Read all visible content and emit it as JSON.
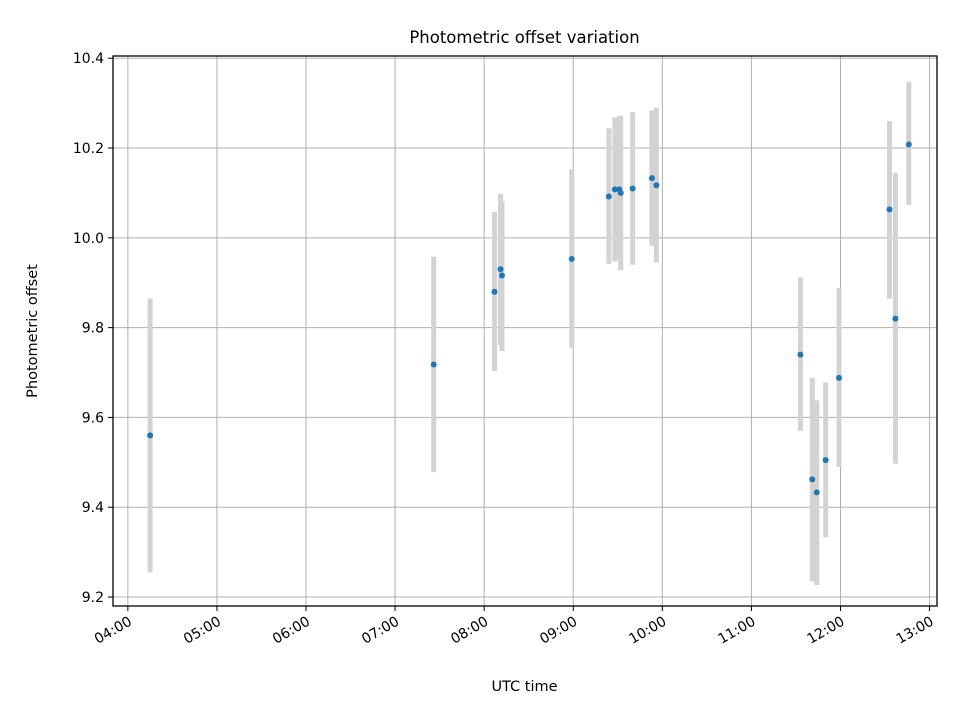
{
  "chart_data": {
    "type": "scatter",
    "title": "Photometric offset variation",
    "xlabel": "UTC time",
    "ylabel": "Photometric offset",
    "x_tick_labels": [
      "04:00",
      "05:00",
      "06:00",
      "07:00",
      "08:00",
      "09:00",
      "10:00",
      "11:00",
      "12:00",
      "13:00"
    ],
    "y_tick_labels": [
      "9.2",
      "9.4",
      "9.6",
      "9.8",
      "10.0",
      "10.2",
      "10.4"
    ],
    "xlim": [
      "03:50",
      "13:05"
    ],
    "ylim": [
      9.18,
      10.405
    ],
    "grid": true,
    "marker_color": "#1f77b4",
    "errorbar_color": "#d3d3d3",
    "points": [
      {
        "x": "04:15",
        "y": 9.56,
        "ylow": 9.255,
        "yhigh": 9.865
      },
      {
        "x": "07:26",
        "y": 9.718,
        "ylow": 9.478,
        "yhigh": 9.958
      },
      {
        "x": "08:07",
        "y": 9.88,
        "ylow": 9.703,
        "yhigh": 10.058
      },
      {
        "x": "08:11",
        "y": 9.93,
        "ylow": 9.76,
        "yhigh": 10.098
      },
      {
        "x": "08:12",
        "y": 9.916,
        "ylow": 9.748,
        "yhigh": 10.082
      },
      {
        "x": "08:59",
        "y": 9.953,
        "ylow": 9.755,
        "yhigh": 10.153
      },
      {
        "x": "09:24",
        "y": 10.092,
        "ylow": 9.942,
        "yhigh": 10.244
      },
      {
        "x": "09:28",
        "y": 10.108,
        "ylow": 9.947,
        "yhigh": 10.268
      },
      {
        "x": "09:31",
        "y": 10.108,
        "ylow": 9.952,
        "yhigh": 10.27
      },
      {
        "x": "09:32",
        "y": 10.1,
        "ylow": 9.928,
        "yhigh": 10.272
      },
      {
        "x": "09:40",
        "y": 10.11,
        "ylow": 9.94,
        "yhigh": 10.28
      },
      {
        "x": "09:53",
        "y": 10.133,
        "ylow": 9.982,
        "yhigh": 10.284
      },
      {
        "x": "09:56",
        "y": 10.117,
        "ylow": 9.945,
        "yhigh": 10.29
      },
      {
        "x": "11:33",
        "y": 9.74,
        "ylow": 9.57,
        "yhigh": 9.912
      },
      {
        "x": "11:41",
        "y": 9.462,
        "ylow": 9.235,
        "yhigh": 9.688
      },
      {
        "x": "11:44",
        "y": 9.433,
        "ylow": 9.227,
        "yhigh": 9.638
      },
      {
        "x": "11:50",
        "y": 9.505,
        "ylow": 9.333,
        "yhigh": 9.678
      },
      {
        "x": "11:59",
        "y": 9.688,
        "ylow": 9.49,
        "yhigh": 9.888
      },
      {
        "x": "12:33",
        "y": 10.063,
        "ylow": 9.865,
        "yhigh": 10.26
      },
      {
        "x": "12:37",
        "y": 9.82,
        "ylow": 9.497,
        "yhigh": 10.145
      },
      {
        "x": "12:46",
        "y": 10.208,
        "ylow": 10.073,
        "yhigh": 10.348
      }
    ]
  }
}
